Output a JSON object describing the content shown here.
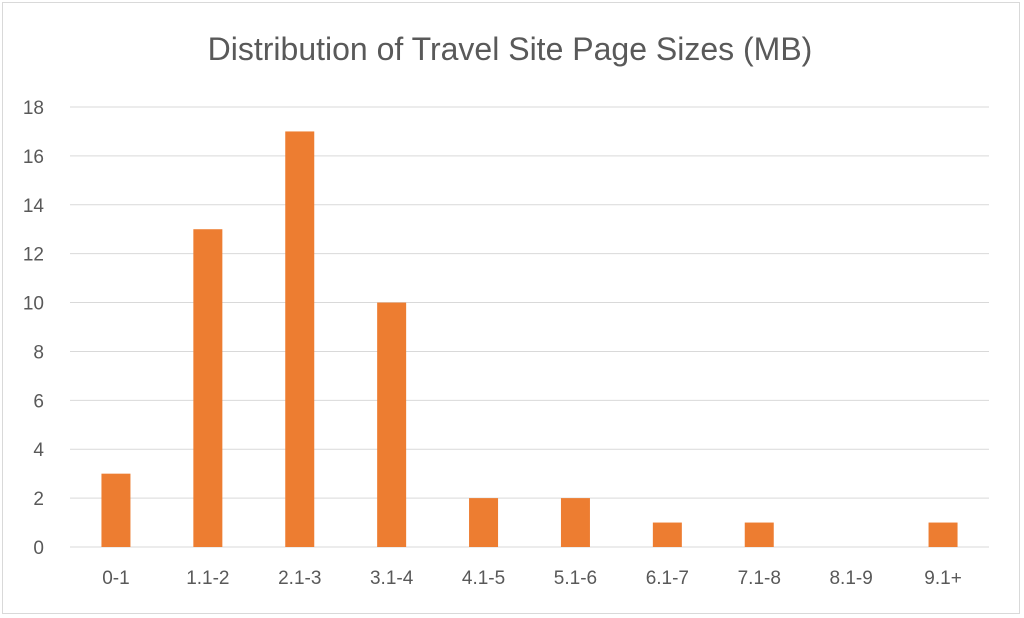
{
  "chart_data": {
    "type": "bar",
    "title": "Distribution of Travel Site Page Sizes (MB)",
    "xlabel": "",
    "ylabel": "",
    "categories": [
      "0-1",
      "1.1-2",
      "2.1-3",
      "3.1-4",
      "4.1-5",
      "5.1-6",
      "6.1-7",
      "7.1-8",
      "8.1-9",
      "9.1+"
    ],
    "values": [
      3,
      13,
      17,
      10,
      2,
      2,
      1,
      1,
      0,
      1
    ],
    "ylim": [
      0,
      18
    ],
    "yticks": [
      0,
      2,
      4,
      6,
      8,
      10,
      12,
      14,
      16,
      18
    ],
    "grid": true,
    "legend": "none",
    "colors": {
      "bar": "#ED7D31",
      "grid": "#d9d9d9",
      "text": "#595959"
    }
  }
}
